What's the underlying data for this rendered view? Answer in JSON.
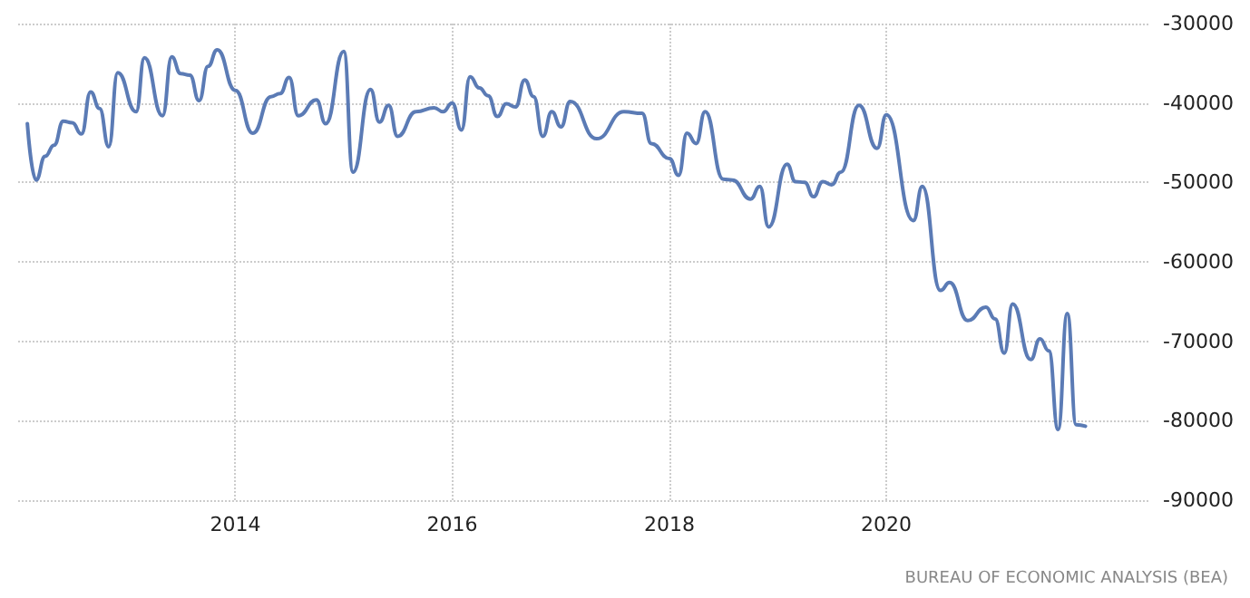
{
  "chart_data": {
    "type": "line",
    "x": [
      "2012-02",
      "2012-03",
      "2012-04",
      "2012-05",
      "2012-06",
      "2012-07",
      "2012-08",
      "2012-09",
      "2012-10",
      "2012-11",
      "2012-12",
      "2013-02",
      "2013-03",
      "2013-05",
      "2013-06",
      "2013-07",
      "2013-08",
      "2013-09",
      "2013-10",
      "2013-11",
      "2014-01",
      "2014-03",
      "2014-05",
      "2014-06",
      "2014-07",
      "2014-08",
      "2014-10",
      "2014-11",
      "2015-01",
      "2015-02",
      "2015-04",
      "2015-05",
      "2015-06",
      "2015-07",
      "2015-09",
      "2015-11",
      "2015-12",
      "2016-01",
      "2016-02",
      "2016-03",
      "2016-04",
      "2016-05",
      "2016-06",
      "2016-07",
      "2016-08",
      "2016-09",
      "2016-10",
      "2016-11",
      "2016-12",
      "2017-01",
      "2017-02",
      "2017-05",
      "2017-08",
      "2017-10",
      "2017-11",
      "2018-01",
      "2018-02",
      "2018-03",
      "2018-04",
      "2018-05",
      "2018-07",
      "2018-08",
      "2018-10",
      "2018-11",
      "2018-12",
      "2019-02",
      "2019-03",
      "2019-04",
      "2019-05",
      "2019-06",
      "2019-07",
      "2019-08",
      "2019-10",
      "2019-12",
      "2020-01",
      "2020-04",
      "2020-05",
      "2020-07",
      "2020-08",
      "2020-10",
      "2020-12",
      "2021-01",
      "2021-02",
      "2021-03",
      "2021-05",
      "2021-06",
      "2021-07",
      "2021-08",
      "2021-09",
      "2021-10",
      "2021-11"
    ],
    "series": [
      {
        "color": "#5b7bb5",
        "values": [
          -42600,
          -49700,
          -46700,
          -45300,
          -42300,
          -42500,
          -43900,
          -38600,
          -40700,
          -45500,
          -36200,
          -41100,
          -34300,
          -41600,
          -34200,
          -36300,
          -36500,
          -39700,
          -35400,
          -33300,
          -38400,
          -43800,
          -39200,
          -38800,
          -36800,
          -41600,
          -39600,
          -42600,
          -33500,
          -48700,
          -38300,
          -42400,
          -40300,
          -44200,
          -41100,
          -40600,
          -41100,
          -40000,
          -43400,
          -36700,
          -38100,
          -39100,
          -41700,
          -40100,
          -40500,
          -37100,
          -39200,
          -44200,
          -41100,
          -43000,
          -39800,
          -44500,
          -41100,
          -41300,
          -45100,
          -47000,
          -49100,
          -43800,
          -45100,
          -41100,
          -49600,
          -49700,
          -52100,
          -50500,
          -55600,
          -47700,
          -49900,
          -50000,
          -51800,
          -49900,
          -50300,
          -48700,
          -40300,
          -45700,
          -41500,
          -54800,
          -50500,
          -63600,
          -62600,
          -67400,
          -65700,
          -67200,
          -71500,
          -65300,
          -72300,
          -69700,
          -71200,
          -81100,
          -66500,
          -80500,
          -80700
        ]
      }
    ],
    "xlim": [
      "2012-01",
      "2022-06"
    ],
    "xticks": [
      {
        "value": "2014",
        "label": "2014"
      },
      {
        "value": "2016",
        "label": "2016"
      },
      {
        "value": "2018",
        "label": "2018"
      },
      {
        "value": "2020",
        "label": "2020"
      }
    ],
    "ylim": [
      -90000,
      -30000
    ],
    "yticks": [
      -30000,
      -40000,
      -50000,
      -60000,
      -70000,
      -80000,
      -90000
    ],
    "grid": true,
    "marker": "none",
    "line_style": "solid",
    "annotations": [
      "BUREAU OF ECONOMIC ANALYSIS (BEA)"
    ]
  }
}
